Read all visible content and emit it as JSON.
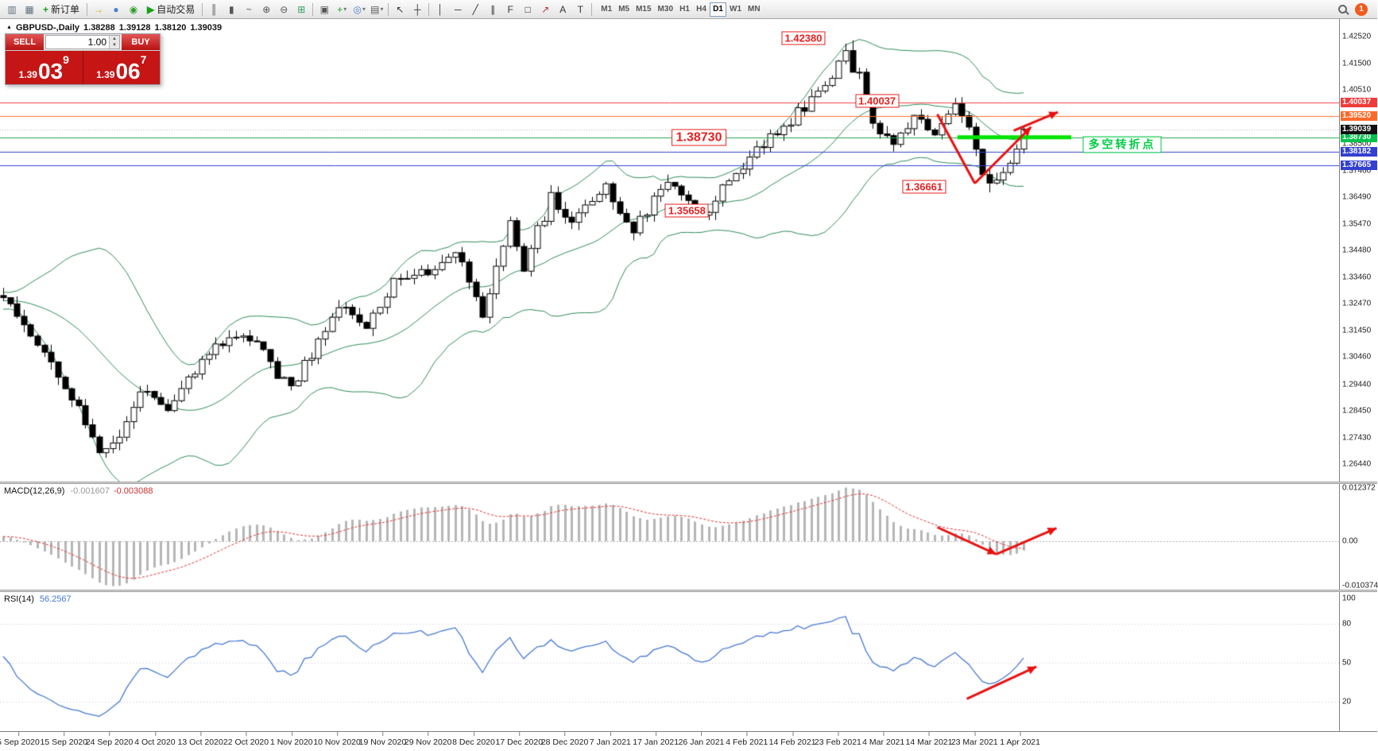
{
  "window": {
    "badge": "1"
  },
  "toolbar": {
    "dropdown_icon": "▾",
    "items": [
      {
        "t": "icon",
        "name": "chart-window-icon",
        "g": "▥",
        "c": "#5f6f7f"
      },
      {
        "t": "icon",
        "name": "profiles-icon",
        "g": "▦",
        "c": "#5f6f7f"
      },
      {
        "t": "btn",
        "name": "new-order-button",
        "label": "新订单",
        "g": "+",
        "gc": "#18a018"
      },
      {
        "t": "sep"
      },
      {
        "t": "icon",
        "name": "launch-icon",
        "g": "→",
        "c": "#e8a000"
      },
      {
        "t": "icon",
        "name": "accounts-icon",
        "g": "●",
        "c": "#4a7fd4"
      },
      {
        "t": "icon",
        "name": "community-icon",
        "g": "◉",
        "c": "#2f9e2f"
      },
      {
        "t": "btn",
        "name": "autotrading-button",
        "label": "自动交易",
        "g": "▶",
        "gc": "#18a018"
      },
      {
        "t": "sep"
      },
      {
        "t": "icon",
        "name": "bar-chart-icon",
        "g": "║",
        "c": "#555555"
      },
      {
        "t": "icon",
        "name": "candle-chart-icon",
        "g": "▮",
        "c": "#555555"
      },
      {
        "t": "icon",
        "name": "line-chart-icon",
        "g": "~",
        "c": "#555555"
      },
      {
        "t": "icon",
        "name": "zoom-in-icon",
        "g": "⊕",
        "c": "#555555"
      },
      {
        "t": "icon",
        "name": "zoom-out-icon",
        "g": "⊖",
        "c": "#555555"
      },
      {
        "t": "icon",
        "name": "tile-windows-icon",
        "g": "⊞",
        "c": "#2f9e5f"
      },
      {
        "t": "sep"
      },
      {
        "t": "icon",
        "name": "cascade-windows-icon",
        "g": "▣",
        "c": "#555555"
      },
      {
        "t": "icon",
        "name": "indicators-icon",
        "g": "+",
        "c": "#18a018",
        "dd": true
      },
      {
        "t": "icon",
        "name": "navigator-icon",
        "g": "◎",
        "c": "#4a7fd4",
        "dd": true
      },
      {
        "t": "icon",
        "name": "templates-icon",
        "g": "▤",
        "c": "#555555",
        "dd": true
      },
      {
        "t": "sep"
      },
      {
        "t": "icon",
        "name": "cursor-icon",
        "g": "↖",
        "c": "#333333"
      },
      {
        "t": "icon",
        "name": "crosshair-icon",
        "g": "┼",
        "c": "#333333"
      },
      {
        "t": "sep"
      },
      {
        "t": "icon",
        "name": "vertical-line-icon",
        "g": "│",
        "c": "#333333"
      },
      {
        "t": "icon",
        "name": "horizontal-line-icon",
        "g": "─",
        "c": "#333333"
      },
      {
        "t": "icon",
        "name": "trendline-icon",
        "g": "╱",
        "c": "#333333"
      },
      {
        "t": "icon",
        "name": "channel-icon",
        "g": "∥",
        "c": "#333333"
      },
      {
        "t": "icon",
        "name": "fibonacci-icon",
        "g": "F",
        "c": "#333333"
      },
      {
        "t": "icon",
        "name": "shapes-icon",
        "g": "□",
        "c": "#333333"
      },
      {
        "t": "icon",
        "name": "arrows-icon",
        "g": "↗",
        "c": "#c03030"
      },
      {
        "t": "icon",
        "name": "text-icon",
        "g": "A",
        "c": "#333333"
      },
      {
        "t": "icon",
        "name": "text-label-icon",
        "g": "T",
        "c": "#333333"
      },
      {
        "t": "sep"
      }
    ],
    "timeframes": [
      "M1",
      "M5",
      "M15",
      "M30",
      "H1",
      "H4",
      "D1",
      "W1",
      "MN"
    ],
    "active_timeframe": "D1"
  },
  "chart_header": {
    "collapse_icon": "▲",
    "symbol_period": "GBPUSD-,Daily",
    "open": "1.38288",
    "high": "1.39128",
    "low": "1.38120",
    "close": "1.39039"
  },
  "trade_panel": {
    "sell_label": "SELL",
    "buy_label": "BUY",
    "volume": "1.00",
    "up_icon": "▲",
    "down_icon": "▼",
    "sell_price": {
      "base": "1.39",
      "big": "03",
      "sup": "9"
    },
    "buy_price": {
      "base": "1.39",
      "big": "06",
      "sup": "7"
    }
  },
  "chart_data": {
    "type": "candlestick",
    "symbol": "GBPUSD-",
    "period": "Daily",
    "visible_bars": 150,
    "axis_price_top": 1.4318,
    "axis_price_bottom": 1.2578,
    "candle_up": "#ffffff",
    "candle_down": "#000000",
    "candle_border": "#000000",
    "axis_ticks": [
      1.4252,
      1.415,
      1.4051,
      1.3952,
      1.385,
      1.3746,
      1.3649,
      1.3547,
      1.3448,
      1.3346,
      1.3247,
      1.3145,
      1.3046,
      1.2944,
      1.2845,
      1.2743,
      1.2644
    ],
    "waypoints": [
      [
        0,
        1.328
      ],
      [
        3,
        1.316
      ],
      [
        9,
        1.295
      ],
      [
        14,
        1.269
      ],
      [
        17,
        1.2745
      ],
      [
        20,
        1.293
      ],
      [
        24,
        1.286
      ],
      [
        29,
        1.304
      ],
      [
        34,
        1.314
      ],
      [
        38,
        1.306
      ],
      [
        42,
        1.292
      ],
      [
        49,
        1.323
      ],
      [
        53,
        1.315
      ],
      [
        57,
        1.333
      ],
      [
        62,
        1.336
      ],
      [
        66,
        1.345
      ],
      [
        70,
        1.32
      ],
      [
        74,
        1.356
      ],
      [
        76,
        1.338
      ],
      [
        80,
        1.365
      ],
      [
        83,
        1.356
      ],
      [
        88,
        1.368
      ],
      [
        92,
        1.352
      ],
      [
        97,
        1.372
      ],
      [
        102,
        1.358
      ],
      [
        107,
        1.374
      ],
      [
        112,
        1.387
      ],
      [
        117,
        1.399
      ],
      [
        121,
        1.41
      ],
      [
        124,
        1.4238
      ],
      [
        127,
        1.392
      ],
      [
        130,
        1.385
      ],
      [
        133,
        1.396
      ],
      [
        136,
        1.388
      ],
      [
        139,
        1.398
      ],
      [
        141,
        1.39
      ],
      [
        144,
        1.3666
      ],
      [
        147,
        1.379
      ],
      [
        149,
        1.39039
      ]
    ],
    "special": {
      "peak_index": 124,
      "peak_high": 1.4238,
      "low_index": 144,
      "low_price": 1.36661,
      "last": {
        "open": 1.38288,
        "high": 1.39128,
        "low": 1.3812,
        "close": 1.39039
      }
    },
    "bollinger": {
      "period": 20,
      "deviation": 2,
      "color": "#2e8b57"
    },
    "levels": [
      {
        "label": "1.40037",
        "price": 1.40037,
        "color": "#f04040",
        "tag_bg": "#f23b3b"
      },
      {
        "label": "1.39520",
        "price": 1.3952,
        "color": "#ff7030",
        "tag_bg": "#ff6a2a"
      },
      {
        "label": "1.38730",
        "price": 1.3873,
        "color": "#28a24c",
        "tag_bg": "#00c24b"
      },
      {
        "label": "1.38182",
        "price": 1.38182,
        "color": "#3340d0",
        "tag_bg": "#3340d0"
      },
      {
        "label": "1.37665",
        "price": 1.37665,
        "color": "#3340d0",
        "tag_bg": "#3340d0"
      }
    ],
    "current_price": {
      "label": "1.39039",
      "price": 1.39039,
      "tag_bg": "#111111"
    },
    "thick_segment": {
      "price": 1.3873,
      "x1f": 0.715,
      "x2f": 0.8,
      "color": "#00e400",
      "width": 5
    },
    "price_labels": [
      {
        "text": "1.42380",
        "xf": 0.6,
        "price": 1.4247
      },
      {
        "text": "1.40037",
        "xf": 0.655,
        "price": 1.401
      },
      {
        "text": "1.38730",
        "xf": 0.522,
        "price": 1.3873,
        "big": true
      },
      {
        "text": "1.35658",
        "xf": 0.513,
        "price": 1.3597
      },
      {
        "text": "1.36661",
        "xf": 0.69,
        "price": 1.3688
      }
    ],
    "note_label": {
      "text": "多空转折点",
      "xf": 0.838,
      "price": 1.3846,
      "color": "#00cc44"
    },
    "arrow_color": "#e81010",
    "arrows_main": [
      {
        "x1f": 0.7,
        "p1": 1.396,
        "x2f": 0.728,
        "p2": 1.37,
        "head": false
      },
      {
        "x1f": 0.728,
        "p1": 1.37,
        "x2f": 0.77,
        "p2": 1.3912,
        "head": true
      },
      {
        "x1f": 0.757,
        "p1": 1.3898,
        "x2f": 0.79,
        "p2": 1.3968,
        "head": true
      }
    ],
    "dates": [
      "5 Sep 2020",
      "15 Sep 2020",
      "24 Sep 2020",
      "4 Oct 2020",
      "13 Oct 2020",
      "22 Oct 2020",
      "1 Nov 2020",
      "10 Nov 2020",
      "19 Nov 2020",
      "29 Nov 2020",
      "8 Dec 2020",
      "17 Dec 2020",
      "28 Dec 2020",
      "7 Jan 2021",
      "17 Jan 2021",
      "26 Jan 2021",
      "4 Feb 2021",
      "14 Feb 2021",
      "23 Feb 2021",
      "4 Mar 2021",
      "14 Mar 2021",
      "23 Mar 2021",
      "1 Apr 2021"
    ],
    "macd": {
      "label": "MACD(12,26,9)",
      "value_main": "-0.001607",
      "value_signal": "-0.003088",
      "axis_labels": [
        {
          "text": "0.012372",
          "v": 0.012372
        },
        {
          "text": "0.00",
          "v": 0
        },
        {
          "text": "-0.010374",
          "v": -0.010374
        }
      ],
      "vmax": 0.0132,
      "vmin": -0.0112,
      "hist_color": "#b6b6b6",
      "signal_color": "#e03030",
      "arrows": [
        {
          "x1f": 0.7,
          "v1": 0.0032,
          "x2f": 0.744,
          "v2": -0.003,
          "head": true
        },
        {
          "x1f": 0.744,
          "v1": -0.003,
          "x2f": 0.789,
          "v2": 0.003,
          "head": true
        }
      ]
    },
    "rsi": {
      "label": "RSI(14)",
      "value": "56.2567",
      "levels": [
        100,
        80,
        50,
        20
      ],
      "color": "#4577d4",
      "arrows": [
        {
          "x1f": 0.722,
          "v1": 22,
          "x2f": 0.774,
          "v2": 47,
          "head": true
        }
      ]
    }
  }
}
